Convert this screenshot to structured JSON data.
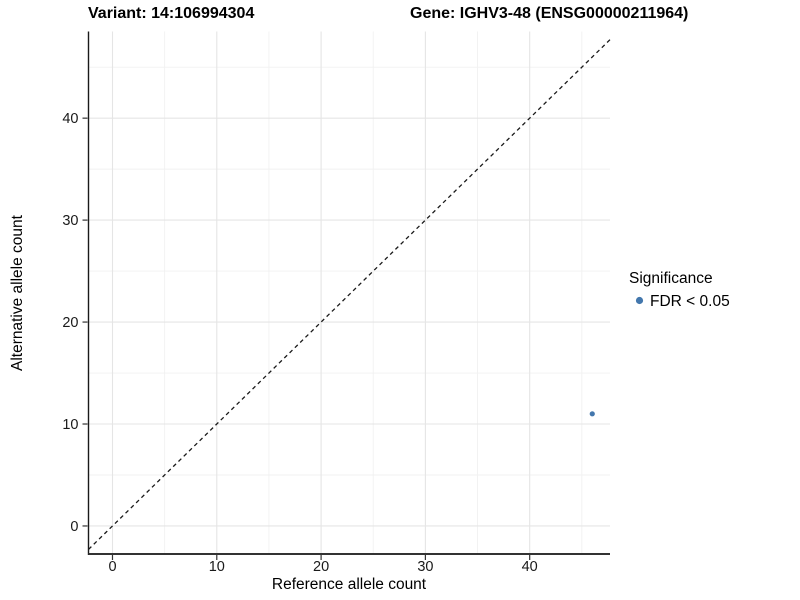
{
  "header": {
    "variant_title": "Variant: 14:106994304",
    "gene_title": "Gene: IGHV3-48 (ENSG00000211964)"
  },
  "chart_data": {
    "type": "scatter",
    "title_left": "Variant: 14:106994304",
    "title_right": "Gene: IGHV3-48 (ENSG00000211964)",
    "xlabel": "Reference allele count",
    "ylabel": "Alternative allele count",
    "xlim": [
      -2.3,
      47.7
    ],
    "ylim": [
      -2.75,
      48.5
    ],
    "xticks": [
      0,
      10,
      20,
      30,
      40
    ],
    "yticks": [
      0,
      10,
      20,
      30,
      40
    ],
    "xminor": [
      5,
      15,
      25,
      35,
      45
    ],
    "yminor": [
      5,
      15,
      25,
      35,
      45
    ],
    "grid": true,
    "points": [
      {
        "x": 46,
        "y": 11,
        "series": "FDR < 0.05"
      }
    ],
    "identity_line": {
      "slope": 1,
      "intercept": 0,
      "style": "dashed"
    },
    "legend": {
      "position": "right",
      "title": "Significance",
      "items": [
        {
          "label": "FDR < 0.05",
          "color": "#4377ad"
        }
      ]
    },
    "colors": {
      "point": "#4377ad",
      "grid_major": "#e5e5e5",
      "grid_minor": "#f1f1f1",
      "axis_line": "#333333",
      "tick": "#333333",
      "identity": "#1a1a1a"
    }
  }
}
